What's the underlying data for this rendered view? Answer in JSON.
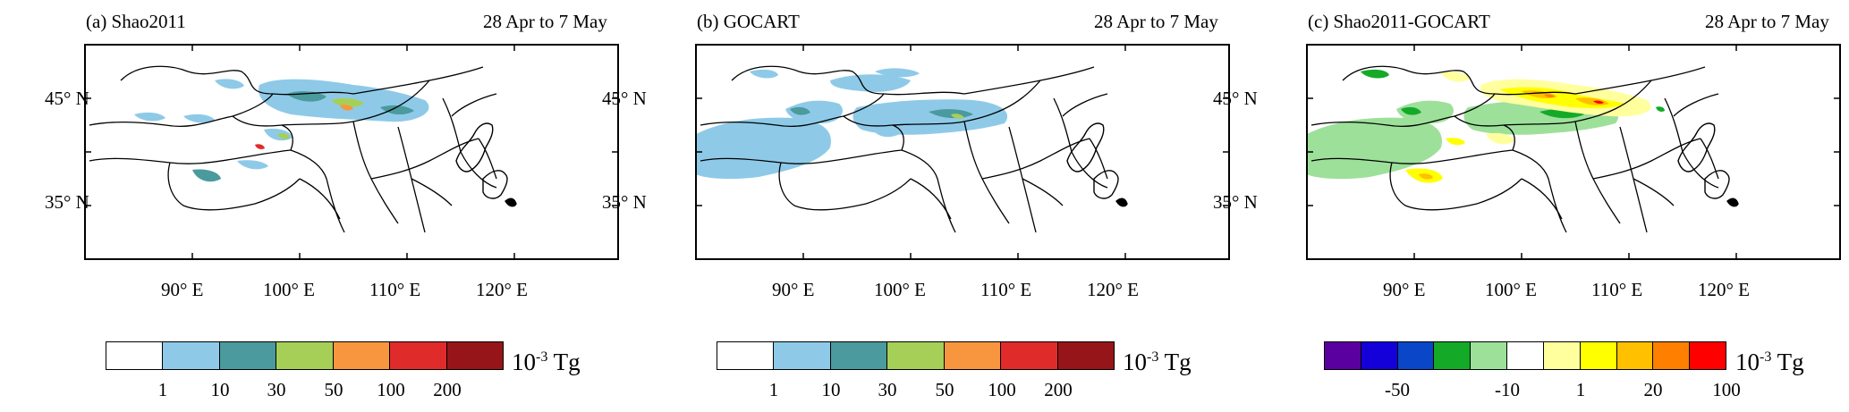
{
  "panels": [
    {
      "title": "(a) Shao2011",
      "date": "28 Apr to 7 May",
      "lat_labels": [
        "45° N",
        "35° N"
      ],
      "lon_labels": [
        "90° E",
        "100° E",
        "110° E",
        "120° E"
      ],
      "colorbar": {
        "colors": [
          "#ffffff",
          "#8ecae8",
          "#4a9a9e",
          "#a6cf57",
          "#f7963f",
          "#e02b2b",
          "#961519"
        ],
        "tick_labels": [
          "1",
          "10",
          "30",
          "50",
          "100",
          "200"
        ],
        "unit_base": "10",
        "unit_exp": "-3",
        "unit_name": "Tg"
      }
    },
    {
      "title": "(b) GOCART",
      "date": "28 Apr to 7 May",
      "lat_labels": [
        "45° N",
        "35° N"
      ],
      "lon_labels": [
        "90° E",
        "100° E",
        "110° E",
        "120° E"
      ],
      "colorbar": {
        "colors": [
          "#ffffff",
          "#8ecae8",
          "#4a9a9e",
          "#a6cf57",
          "#f7963f",
          "#e02b2b",
          "#961519"
        ],
        "tick_labels": [
          "1",
          "10",
          "30",
          "50",
          "100",
          "200"
        ],
        "unit_base": "10",
        "unit_exp": "-3",
        "unit_name": "Tg"
      }
    },
    {
      "title": "(c) Shao2011-GOCART",
      "date": "28 Apr to 7 May",
      "lat_labels": [
        "45° N",
        "35° N"
      ],
      "lon_labels": [
        "90° E",
        "100° E",
        "110° E",
        "120° E"
      ],
      "colorbar": {
        "colors": [
          "#5a00a0",
          "#1400d8",
          "#0a46c8",
          "#14aa28",
          "#9de09a",
          "#ffffff",
          "#ffff9e",
          "#ffff00",
          "#ffc000",
          "#ff7f00",
          "#ff0000"
        ],
        "tick_labels": [
          "-50",
          "-10",
          "1",
          "20",
          "100"
        ],
        "unit_base": "10",
        "unit_exp": "-3",
        "unit_name": "Tg"
      }
    }
  ]
}
